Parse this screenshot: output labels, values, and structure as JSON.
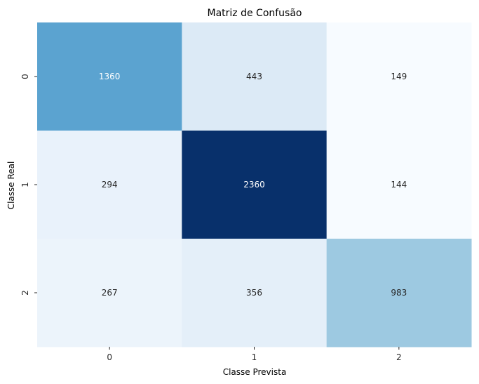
{
  "chart_data": {
    "type": "heatmap",
    "title": "Matriz de Confusão",
    "xlabel": "Classe Prevista",
    "ylabel": "Classe Real",
    "x_categories": [
      "0",
      "1",
      "2"
    ],
    "y_categories": [
      "0",
      "1",
      "2"
    ],
    "values": [
      [
        1360,
        443,
        149
      ],
      [
        294,
        2360,
        144
      ],
      [
        267,
        356,
        983
      ]
    ],
    "colormap": "Blues",
    "color_range": [
      144,
      2360
    ],
    "colorbar": false,
    "annotations": true
  }
}
